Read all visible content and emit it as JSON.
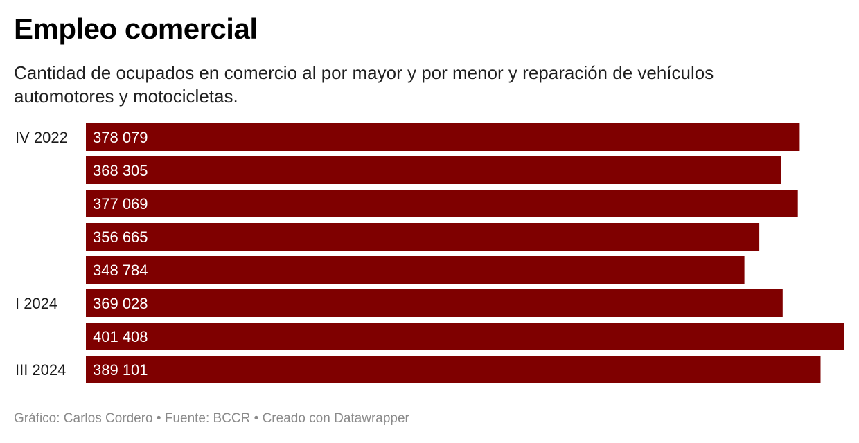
{
  "chart_data": {
    "type": "bar",
    "orientation": "horizontal",
    "title": "Empleo comercial",
    "subtitle": "Cantidad de ocupados en comercio al por mayor y por menor y reparación de vehículos automotores y motocicletas.",
    "category_labels": [
      "IV 2022",
      "",
      "",
      "",
      "",
      "I 2024",
      "",
      "III 2024"
    ],
    "values": [
      378079,
      368305,
      377069,
      356665,
      348784,
      369028,
      401408,
      389101
    ],
    "value_labels": [
      "378 079",
      "368 305",
      "377 069",
      "356 665",
      "348 784",
      "369 028",
      "401 408",
      "389 101"
    ],
    "xlim": [
      0,
      401408
    ],
    "bar_color": "#7f0000",
    "value_label_color": "#ffffff"
  },
  "footer": {
    "credit": "Gráfico: Carlos Cordero • Fuente: BCCR • Creado con Datawrapper"
  },
  "colors": {
    "bar": "#7f0000",
    "footer_text": "#8a8a8a"
  }
}
